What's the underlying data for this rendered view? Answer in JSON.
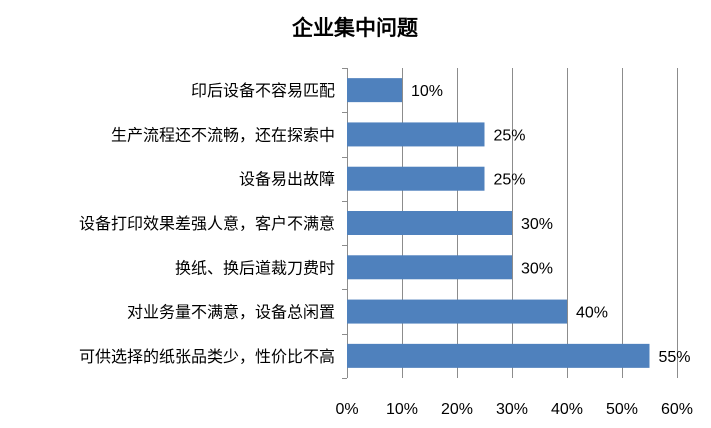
{
  "chart_data": {
    "type": "bar",
    "orientation": "horizontal",
    "title": "企业集中问题",
    "categories": [
      "印后设备不容易匹配",
      "生产流程还不流畅，还在探索中",
      "设备易出故障",
      "设备打印效果差强人意，客户不满意",
      "换纸、换后道裁刀费时",
      "对业务量不满意，设备总闲置",
      "可供选择的纸张品类少，性价比不高"
    ],
    "values": [
      10,
      25,
      25,
      30,
      30,
      40,
      55
    ],
    "data_labels": [
      "10%",
      "25%",
      "25%",
      "30%",
      "30%",
      "40%",
      "55%"
    ],
    "xlim": [
      0,
      60
    ],
    "x_ticks": [
      "0%",
      "10%",
      "20%",
      "30%",
      "40%",
      "50%",
      "60%"
    ],
    "grid": true,
    "legend": "none",
    "bar_color": "#4f81bd"
  }
}
